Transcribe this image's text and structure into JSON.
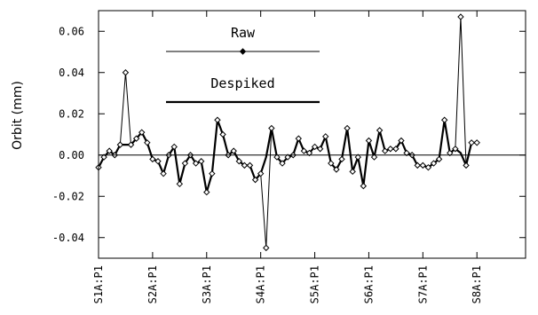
{
  "chart_data": {
    "type": "line",
    "title": "",
    "xlabel": "",
    "ylabel": "Orbit (mm)",
    "ylim": [
      -0.05,
      0.07
    ],
    "xlim": [
      0,
      79
    ],
    "yticks": [
      -0.04,
      -0.02,
      0.0,
      0.02,
      0.04,
      0.06
    ],
    "ytick_labels": [
      "-0.04",
      "-0.02",
      "0.00",
      "0.02",
      "0.04",
      "0.06"
    ],
    "xticks": [
      0,
      10,
      20,
      30,
      40,
      50,
      60,
      70
    ],
    "xtick_labels": [
      "S1A:P1",
      "S2A:P1",
      "S3A:P1",
      "S4A:P1",
      "S5A:P1",
      "S6A:P1",
      "S7A:P1",
      "S8A:P1"
    ],
    "grid": false,
    "zero_line": true,
    "legend": "top-left",
    "series": [
      {
        "name": "Raw",
        "style": "thin line with diamond markers",
        "values": [
          -0.006,
          -0.001,
          0.002,
          0.0,
          0.005,
          0.04,
          0.005,
          0.008,
          0.011,
          0.006,
          -0.002,
          -0.003,
          -0.009,
          0.0,
          0.004,
          -0.014,
          -0.004,
          0.0,
          -0.004,
          -0.003,
          -0.018,
          -0.009,
          0.017,
          0.01,
          0.0,
          0.002,
          -0.003,
          -0.005,
          -0.005,
          -0.012,
          -0.009,
          -0.045,
          0.013,
          -0.001,
          -0.004,
          -0.001,
          0.0,
          0.008,
          0.002,
          0.001,
          0.004,
          0.003,
          0.009,
          -0.004,
          -0.007,
          -0.002,
          0.013,
          -0.008,
          -0.001,
          -0.015,
          0.007,
          -0.001,
          0.012,
          0.002,
          0.003,
          0.003,
          0.007,
          0.001,
          0.0,
          -0.005,
          -0.005,
          -0.006,
          -0.004,
          -0.002,
          0.017,
          0.001,
          0.003,
          0.067,
          -0.005,
          0.006,
          0.006
        ]
      },
      {
        "name": "Despiked",
        "style": "thick line",
        "values": [
          -0.006,
          -0.001,
          0.002,
          0.0,
          0.005,
          0.005,
          0.005,
          0.008,
          0.011,
          0.006,
          -0.002,
          -0.003,
          -0.009,
          0.0,
          0.004,
          -0.014,
          -0.004,
          0.0,
          -0.004,
          -0.003,
          -0.018,
          -0.009,
          0.017,
          0.01,
          0.0,
          0.002,
          -0.003,
          -0.005,
          -0.005,
          -0.012,
          -0.009,
          -0.001,
          0.013,
          -0.001,
          -0.004,
          -0.001,
          0.0,
          0.008,
          0.002,
          0.001,
          0.004,
          0.003,
          0.009,
          -0.004,
          -0.007,
          -0.002,
          0.013,
          -0.008,
          -0.001,
          -0.015,
          0.007,
          -0.001,
          0.012,
          0.002,
          0.003,
          0.003,
          0.007,
          0.001,
          0.0,
          -0.005,
          -0.005,
          -0.006,
          -0.004,
          -0.002,
          0.017,
          0.001,
          0.003,
          0.001,
          -0.005,
          0.006,
          0.006
        ]
      }
    ]
  }
}
